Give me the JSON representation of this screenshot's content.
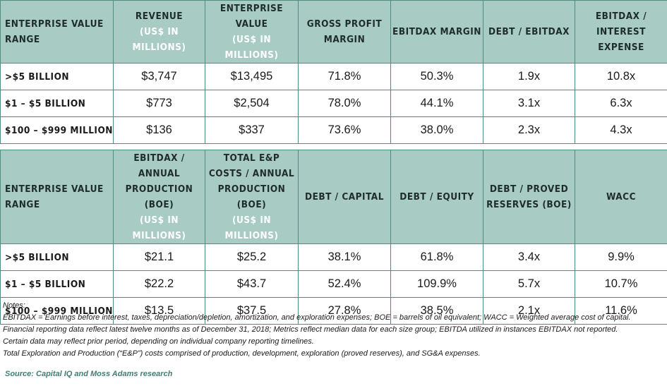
{
  "table1": {
    "headers": [
      {
        "main": "Enterprise Value Range",
        "sub": ""
      },
      {
        "main": "Revenue",
        "sub": "(US$ in millions)"
      },
      {
        "main": "Enterprise Value",
        "sub": "(US$ in millions)"
      },
      {
        "main": "Gross Profit Margin",
        "sub": ""
      },
      {
        "main": "EBITDAX Margin",
        "sub": ""
      },
      {
        "main": "Debt / EBITDAX",
        "sub": ""
      },
      {
        "main": "EBITDAX / Interest Expense",
        "sub": ""
      }
    ],
    "rows": [
      [
        ">$5 billion",
        "$3,747",
        "$13,495",
        "71.8%",
        "50.3%",
        "1.9x",
        "10.8x"
      ],
      [
        "$1 – $5 billion",
        "$773",
        "$2,504",
        "78.0%",
        "44.1%",
        "3.1x",
        "6.3x"
      ],
      [
        "$100 – $999 million",
        "$136",
        "$337",
        "73.6%",
        "38.0%",
        "2.3x",
        "4.3x"
      ]
    ]
  },
  "table2": {
    "headers": [
      {
        "main": "Enterprise Value Range",
        "sub": ""
      },
      {
        "main": "EBITDAX / Annual Production (BOE)",
        "sub": "(US$ in millions)"
      },
      {
        "main": "Total E&P Costs / Annual Production (BOE)",
        "sub": "(US$ in millions)"
      },
      {
        "main": "Debt / Capital",
        "sub": ""
      },
      {
        "main": "Debt / Equity",
        "sub": ""
      },
      {
        "main": "Debt / Proved Reserves (BOE)",
        "sub": ""
      },
      {
        "main": "WACC",
        "sub": ""
      }
    ],
    "rows": [
      [
        ">$5 billion",
        "$21.1",
        "$25.2",
        "38.1%",
        "61.8%",
        "3.4x",
        "9.9%"
      ],
      [
        "$1 – $5 billion",
        "$22.2",
        "$43.7",
        "52.4%",
        "109.9%",
        "5.7x",
        "10.7%"
      ],
      [
        "$100 – $999 million",
        "$13.5",
        "$37.5",
        "27.8%",
        "38.5%",
        "2.1x",
        "11.6%"
      ]
    ]
  },
  "notes": {
    "title": "Notes:",
    "lines": [
      "EBITDAX = Earnings before interest, taxes, depreciation/depletion, amortization, and exploration expenses; BOE = barrels of oil equivalent; WACC = Weighted average cost of capital.",
      "Financial reporting data reflect latest twelve months as of December 31, 2018; Metrics reflect median data for each size group; EBITDA utilized in instances EBITDAX not reported.",
      "Certain data may reflect prior period, depending on individual company reporting timelines.",
      "Total Exploration and Production (“E&P”) costs comprised of production, development, exploration (proved reserves), and SG&A expenses."
    ]
  },
  "source": "Source: Capital IQ and Moss Adams research",
  "colors": {
    "header_bg": "#a8cbc3",
    "border": "#4f8c82",
    "source_text": "#3e7f74"
  }
}
